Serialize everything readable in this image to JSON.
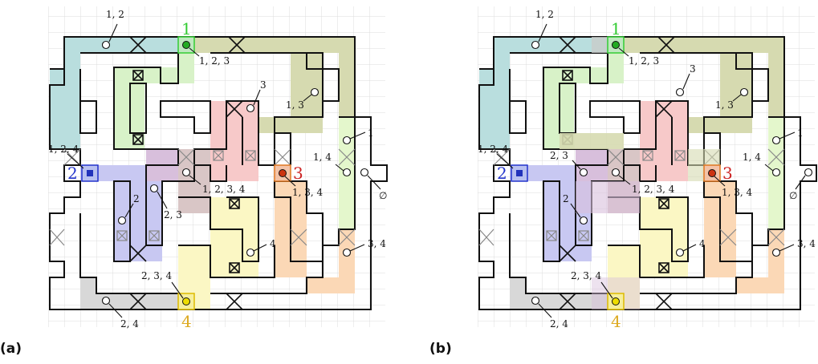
{
  "colors": {
    "grid": "#dcdcdc",
    "wall": "#111111",
    "t1": "#33cc33",
    "t2": "#2233cc",
    "t3": "#cc2222",
    "t4": "#ddbb00",
    "r12": "#b9dede",
    "r123": "#cfe3a8",
    "r13": "#d6dab0",
    "r23": "#d8bfdc",
    "r2": "#c8c8f2",
    "r1234": "#d9c6c6",
    "r24": "#d8d8d8",
    "r34": "#fbd8b6",
    "r234": "#fbf7c4",
    "r3": "#f7c9c9",
    "r14": "#e4f7cc",
    "r1": "#d8f2c8"
  },
  "panels": [
    {
      "label": "(a)",
      "terminals": [
        {
          "id": "1",
          "label": "1",
          "color": "t1"
        },
        {
          "id": "2",
          "label": "2",
          "color": "t2"
        },
        {
          "id": "3",
          "label": "3",
          "color": "t3"
        },
        {
          "id": "4",
          "label": "4",
          "color": "t4"
        }
      ],
      "region_labels": [
        "1, 2",
        "1, 2, 3",
        "1, 3",
        "3",
        "1, 2, 4",
        "1",
        "1, 4",
        "∅",
        "1, 3, 4",
        "1, 2, 3, 4",
        "2",
        "2, 3",
        "4",
        "3, 4",
        "2, 3, 4",
        "2, 4"
      ]
    },
    {
      "label": "(b)",
      "terminals": [
        {
          "id": "1",
          "label": "1",
          "color": "t1"
        },
        {
          "id": "2",
          "label": "2",
          "color": "t2"
        },
        {
          "id": "3",
          "label": "3",
          "color": "t3"
        },
        {
          "id": "4",
          "label": "4",
          "color": "t4"
        }
      ],
      "region_labels": [
        "1, 2",
        "1, 2, 3",
        "1, 3",
        "3",
        "1, 2, 4",
        "2, 3",
        "1",
        "1, 4",
        "∅",
        "1, 3, 4",
        "1, 2, 3, 4",
        "2",
        "4",
        "3, 4",
        "2, 3, 4",
        "2, 4"
      ]
    }
  ]
}
